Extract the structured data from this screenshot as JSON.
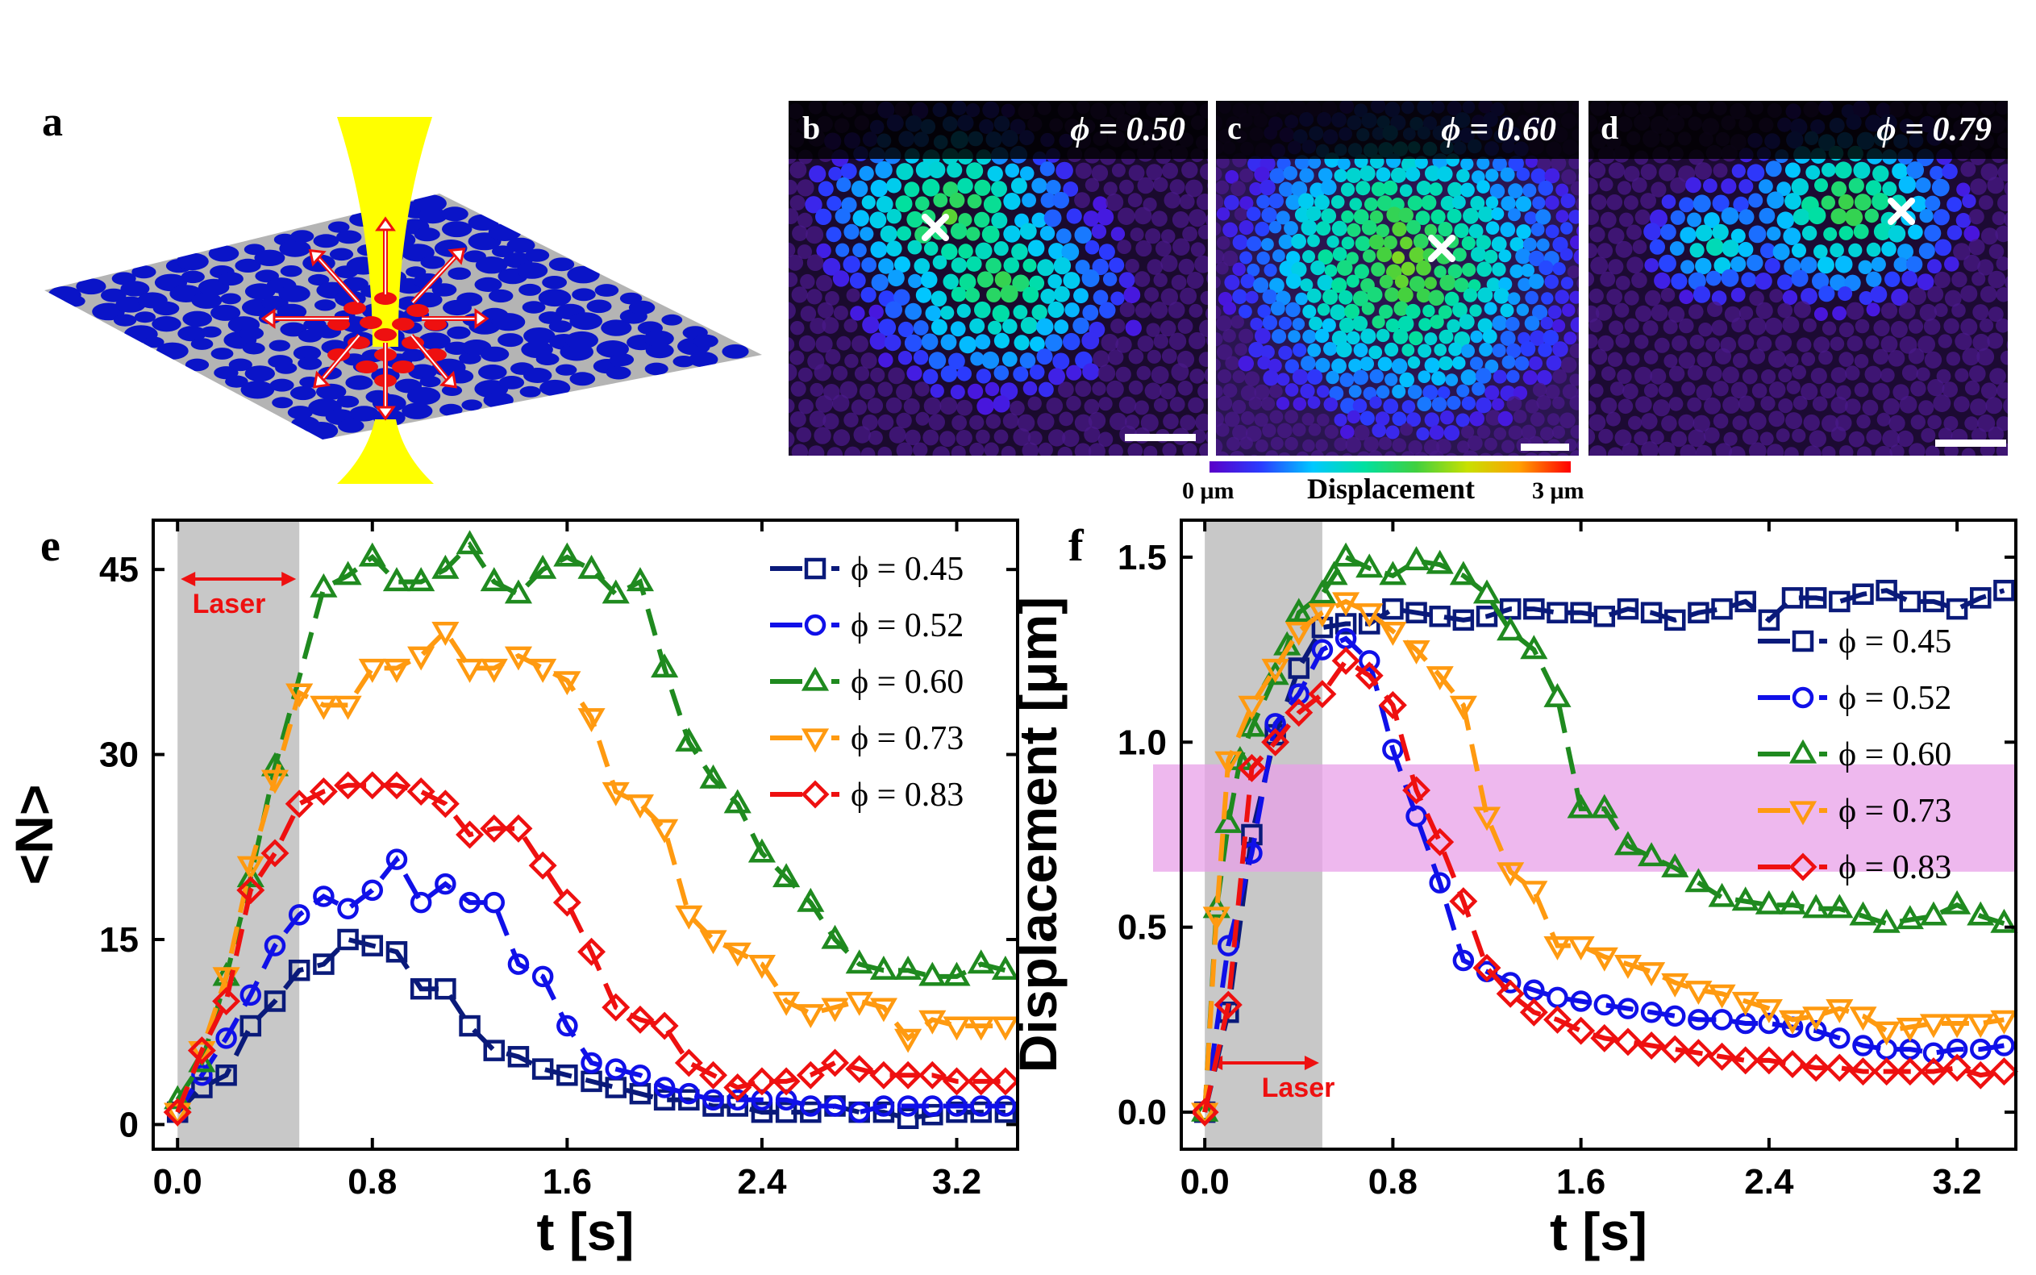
{
  "panel_labels": {
    "a": "a",
    "e": "e",
    "f": "f"
  },
  "micrographs": [
    {
      "tag": "b",
      "phi_label": "ϕ = 0.50",
      "bg": "#1a0a2e"
    },
    {
      "tag": "c",
      "phi_label": "ϕ = 0.60",
      "bg": "#2a1550"
    },
    {
      "tag": "d",
      "phi_label": "ϕ = 0.79",
      "bg": "#1c0a33"
    }
  ],
  "colorbar": {
    "min_label": "0 μm",
    "title": "Displacement",
    "max_label": "3 μm",
    "colors": [
      "#5a00c8",
      "#2a3cff",
      "#00c8ff",
      "#00e0a0",
      "#40d040",
      "#c8e000",
      "#ffa000",
      "#ff0000"
    ]
  },
  "colors": {
    "phi045": "#0a1a7a",
    "phi052": "#1010e8",
    "phi060": "#1f8a1f",
    "phi073": "#ff9a10",
    "phi083": "#ee1010",
    "laser_band": "#c8c8c8",
    "laser_arrow": "#ee1010",
    "pink_band": "#e8a0e8",
    "yellow_beam": "#ffff00",
    "particle_blue": "#0a14c8",
    "particle_red": "#ee1010",
    "plane": "#b4b4b4"
  },
  "chart_data": [
    {
      "type": "line",
      "panel": "e",
      "xlabel": "t [s]",
      "ylabel": "<N>",
      "xlim": [
        -0.1,
        3.45
      ],
      "ylim": [
        -2,
        49
      ],
      "xticks": [
        0.0,
        0.8,
        1.6,
        2.4,
        3.2
      ],
      "xtick_labels": [
        "0.0",
        "0.8",
        "1.6",
        "2.4",
        "3.2"
      ],
      "yticks": [
        0,
        15,
        30,
        45
      ],
      "ytick_labels": [
        "0",
        "15",
        "30",
        "45"
      ],
      "laser_span": [
        0.0,
        0.5
      ],
      "laser_label": "Laser",
      "legend": {
        "location": "top-right"
      },
      "series": [
        {
          "name": "ϕ = 0.45",
          "marker": "square",
          "color_key": "phi045",
          "x": [
            0.0,
            0.1,
            0.2,
            0.3,
            0.4,
            0.5,
            0.6,
            0.7,
            0.8,
            0.9,
            1.0,
            1.1,
            1.2,
            1.3,
            1.4,
            1.5,
            1.6,
            1.7,
            1.8,
            1.9,
            2.0,
            2.1,
            2.2,
            2.3,
            2.4,
            2.5,
            2.6,
            2.7,
            2.8,
            2.9,
            3.0,
            3.1,
            3.2,
            3.3,
            3.4
          ],
          "y": [
            1,
            3,
            4,
            8,
            10,
            12.5,
            13,
            15,
            14.5,
            14,
            11,
            11,
            8,
            6,
            5.5,
            4.5,
            4,
            3.5,
            3,
            2.5,
            2,
            2,
            1.5,
            1.5,
            1,
            1,
            1,
            1.5,
            1,
            1,
            0.5,
            0.8,
            1,
            1,
            1
          ]
        },
        {
          "name": "ϕ = 0.52",
          "marker": "circle",
          "color_key": "phi052",
          "x": [
            0.0,
            0.1,
            0.2,
            0.3,
            0.4,
            0.5,
            0.6,
            0.7,
            0.8,
            0.9,
            1.0,
            1.1,
            1.2,
            1.3,
            1.4,
            1.5,
            1.6,
            1.7,
            1.8,
            1.9,
            2.0,
            2.1,
            2.2,
            2.3,
            2.4,
            2.5,
            2.6,
            2.7,
            2.8,
            2.9,
            3.0,
            3.1,
            3.2,
            3.3,
            3.4
          ],
          "y": [
            1,
            4,
            7,
            10.5,
            14.5,
            17,
            18.5,
            17.5,
            19,
            21.5,
            18,
            19.5,
            18,
            18,
            13,
            12,
            8,
            5,
            4.5,
            4,
            3,
            2.5,
            2,
            2,
            2,
            2,
            1.5,
            1.5,
            1,
            1.5,
            1.5,
            1.5,
            1.5,
            1.5,
            1.5
          ]
        },
        {
          "name": "ϕ = 0.60",
          "marker": "triangle-up",
          "color_key": "phi060",
          "x": [
            0.0,
            0.1,
            0.2,
            0.3,
            0.4,
            0.6,
            0.7,
            0.8,
            0.9,
            1.0,
            1.1,
            1.2,
            1.3,
            1.4,
            1.5,
            1.6,
            1.7,
            1.8,
            1.9,
            2.0,
            2.1,
            2.2,
            2.3,
            2.4,
            2.5,
            2.6,
            2.7,
            2.8,
            2.9,
            3.0,
            3.1,
            3.2,
            3.3,
            3.4
          ],
          "y": [
            2,
            5,
            12,
            20,
            29,
            43.5,
            44.5,
            46,
            44,
            44,
            45,
            47,
            44,
            43,
            45,
            46,
            45,
            43,
            44,
            37,
            31,
            28,
            26,
            22,
            20,
            18,
            15,
            13,
            12.5,
            12.5,
            12,
            12,
            13,
            12.5
          ]
        },
        {
          "name": "ϕ = 0.73",
          "marker": "triangle-down",
          "color_key": "phi073",
          "x": [
            0.0,
            0.1,
            0.2,
            0.3,
            0.4,
            0.5,
            0.6,
            0.7,
            0.8,
            0.9,
            1.0,
            1.1,
            1.2,
            1.3,
            1.4,
            1.5,
            1.6,
            1.7,
            1.8,
            1.9,
            2.0,
            2.1,
            2.2,
            2.3,
            2.4,
            2.5,
            2.6,
            2.7,
            2.8,
            2.9,
            3.0,
            3.1,
            3.2,
            3.3,
            3.4
          ],
          "y": [
            1,
            6,
            12,
            21,
            28,
            35,
            34,
            34,
            37,
            37,
            38,
            40,
            37,
            37,
            38,
            37,
            36,
            33,
            27,
            26,
            24,
            17,
            15,
            14,
            13,
            10,
            9,
            9.5,
            10,
            9.5,
            7,
            8.5,
            8,
            8,
            8
          ]
        },
        {
          "name": "ϕ = 0.83",
          "marker": "diamond",
          "color_key": "phi083",
          "x": [
            0.0,
            0.1,
            0.2,
            0.3,
            0.4,
            0.5,
            0.6,
            0.7,
            0.8,
            0.9,
            1.0,
            1.1,
            1.2,
            1.3,
            1.4,
            1.5,
            1.6,
            1.7,
            1.8,
            1.9,
            2.0,
            2.1,
            2.2,
            2.3,
            2.4,
            2.5,
            2.6,
            2.7,
            2.8,
            2.9,
            3.0,
            3.1,
            3.2,
            3.3,
            3.4
          ],
          "y": [
            1,
            6,
            10,
            19,
            22,
            26,
            27,
            27.5,
            27.5,
            27.5,
            27,
            26,
            23.5,
            24,
            24,
            21,
            18,
            14,
            9.5,
            8.5,
            8,
            5,
            4,
            3,
            3.5,
            3.5,
            4,
            5,
            4.5,
            4,
            4,
            4,
            3.5,
            3.5,
            3.5
          ]
        }
      ]
    },
    {
      "type": "line",
      "panel": "f",
      "xlabel": "t [s]",
      "ylabel": "Displacement [μm]",
      "xlim": [
        -0.1,
        3.45
      ],
      "ylim": [
        -0.1,
        1.6
      ],
      "xticks": [
        0.0,
        0.8,
        1.6,
        2.4,
        3.2
      ],
      "xtick_labels": [
        "0.0",
        "0.8",
        "1.6",
        "2.4",
        "3.2"
      ],
      "yticks": [
        0.0,
        0.5,
        1.0,
        1.5
      ],
      "ytick_labels": [
        "0.0",
        "0.5",
        "1.0",
        "1.5"
      ],
      "laser_span": [
        0.0,
        0.5
      ],
      "laser_label": "Laser",
      "highlight_band_y": [
        0.65,
        0.94
      ],
      "legend": {
        "location": "top-right"
      },
      "series": [
        {
          "name": "ϕ = 0.45",
          "marker": "square",
          "color_key": "phi045",
          "x": [
            0.0,
            0.1,
            0.2,
            0.3,
            0.4,
            0.5,
            0.6,
            0.7,
            0.8,
            0.9,
            1.0,
            1.1,
            1.2,
            1.3,
            1.4,
            1.5,
            1.6,
            1.7,
            1.8,
            1.9,
            2.0,
            2.1,
            2.2,
            2.3,
            2.4,
            2.5,
            2.6,
            2.7,
            2.8,
            2.9,
            3.0,
            3.1,
            3.2,
            3.3,
            3.4
          ],
          "y": [
            0,
            0.27,
            0.75,
            1.02,
            1.2,
            1.31,
            1.32,
            1.32,
            1.36,
            1.35,
            1.34,
            1.33,
            1.34,
            1.36,
            1.36,
            1.35,
            1.35,
            1.34,
            1.36,
            1.35,
            1.33,
            1.35,
            1.36,
            1.38,
            1.33,
            1.39,
            1.39,
            1.38,
            1.4,
            1.41,
            1.38,
            1.38,
            1.36,
            1.39,
            1.41
          ]
        },
        {
          "name": "ϕ = 0.52",
          "marker": "circle",
          "color_key": "phi052",
          "x": [
            0.0,
            0.1,
            0.2,
            0.3,
            0.4,
            0.5,
            0.6,
            0.7,
            0.8,
            0.9,
            1.0,
            1.1,
            1.2,
            1.3,
            1.4,
            1.5,
            1.6,
            1.7,
            1.8,
            1.9,
            2.0,
            2.1,
            2.2,
            2.3,
            2.4,
            2.5,
            2.6,
            2.7,
            2.8,
            2.9,
            3.0,
            3.1,
            3.2,
            3.3,
            3.4
          ],
          "y": [
            0,
            0.45,
            0.7,
            1.05,
            1.13,
            1.25,
            1.28,
            1.22,
            0.98,
            0.8,
            0.62,
            0.41,
            0.38,
            0.35,
            0.33,
            0.31,
            0.3,
            0.29,
            0.28,
            0.27,
            0.26,
            0.25,
            0.25,
            0.24,
            0.24,
            0.23,
            0.22,
            0.2,
            0.18,
            0.17,
            0.17,
            0.16,
            0.17,
            0.17,
            0.18
          ]
        },
        {
          "name": "ϕ = 0.60",
          "marker": "triangle-up",
          "color_key": "phi060",
          "x": [
            0.0,
            0.05,
            0.1,
            0.15,
            0.2,
            0.3,
            0.35,
            0.4,
            0.5,
            0.55,
            0.6,
            0.7,
            0.8,
            0.9,
            1.0,
            1.1,
            1.2,
            1.3,
            1.4,
            1.5,
            1.6,
            1.7,
            1.8,
            1.9,
            2.0,
            2.1,
            2.2,
            2.3,
            2.4,
            2.5,
            2.6,
            2.7,
            2.8,
            2.9,
            3.0,
            3.1,
            3.2,
            3.3,
            3.4
          ],
          "y": [
            0,
            0.55,
            0.78,
            0.95,
            1.04,
            1.18,
            1.26,
            1.35,
            1.4,
            1.45,
            1.5,
            1.47,
            1.45,
            1.49,
            1.48,
            1.45,
            1.4,
            1.3,
            1.25,
            1.12,
            0.82,
            0.82,
            0.72,
            0.69,
            0.66,
            0.62,
            0.58,
            0.57,
            0.56,
            0.56,
            0.55,
            0.55,
            0.53,
            0.51,
            0.52,
            0.53,
            0.56,
            0.53,
            0.51
          ]
        },
        {
          "name": "ϕ = 0.73",
          "marker": "triangle-down",
          "color_key": "phi073",
          "x": [
            0.0,
            0.05,
            0.1,
            0.2,
            0.3,
            0.4,
            0.5,
            0.6,
            0.7,
            0.8,
            0.9,
            1.0,
            1.1,
            1.2,
            1.3,
            1.4,
            1.5,
            1.6,
            1.7,
            1.8,
            1.9,
            2.0,
            2.1,
            2.2,
            2.3,
            2.4,
            2.5,
            2.6,
            2.7,
            2.8,
            2.9,
            3.0,
            3.1,
            3.2,
            3.3,
            3.4
          ],
          "y": [
            0,
            0.53,
            0.95,
            1.1,
            1.2,
            1.3,
            1.35,
            1.38,
            1.35,
            1.3,
            1.25,
            1.18,
            1.1,
            0.8,
            0.65,
            0.6,
            0.45,
            0.45,
            0.42,
            0.4,
            0.38,
            0.35,
            0.33,
            0.32,
            0.3,
            0.28,
            0.25,
            0.26,
            0.28,
            0.26,
            0.22,
            0.23,
            0.24,
            0.24,
            0.24,
            0.25
          ]
        },
        {
          "name": "ϕ = 0.83",
          "marker": "diamond",
          "color_key": "phi083",
          "x": [
            0.0,
            0.1,
            0.2,
            0.3,
            0.4,
            0.5,
            0.6,
            0.7,
            0.8,
            0.9,
            1.0,
            1.1,
            1.2,
            1.3,
            1.4,
            1.5,
            1.6,
            1.7,
            1.8,
            1.9,
            2.0,
            2.1,
            2.2,
            2.3,
            2.4,
            2.5,
            2.6,
            2.7,
            2.8,
            2.9,
            3.0,
            3.1,
            3.2,
            3.3,
            3.4
          ],
          "y": [
            0,
            0.29,
            0.93,
            1.0,
            1.08,
            1.13,
            1.22,
            1.18,
            1.1,
            0.87,
            0.73,
            0.57,
            0.39,
            0.32,
            0.27,
            0.25,
            0.22,
            0.2,
            0.19,
            0.18,
            0.17,
            0.16,
            0.15,
            0.14,
            0.14,
            0.13,
            0.12,
            0.12,
            0.11,
            0.11,
            0.11,
            0.11,
            0.12,
            0.1,
            0.11
          ]
        }
      ]
    }
  ]
}
